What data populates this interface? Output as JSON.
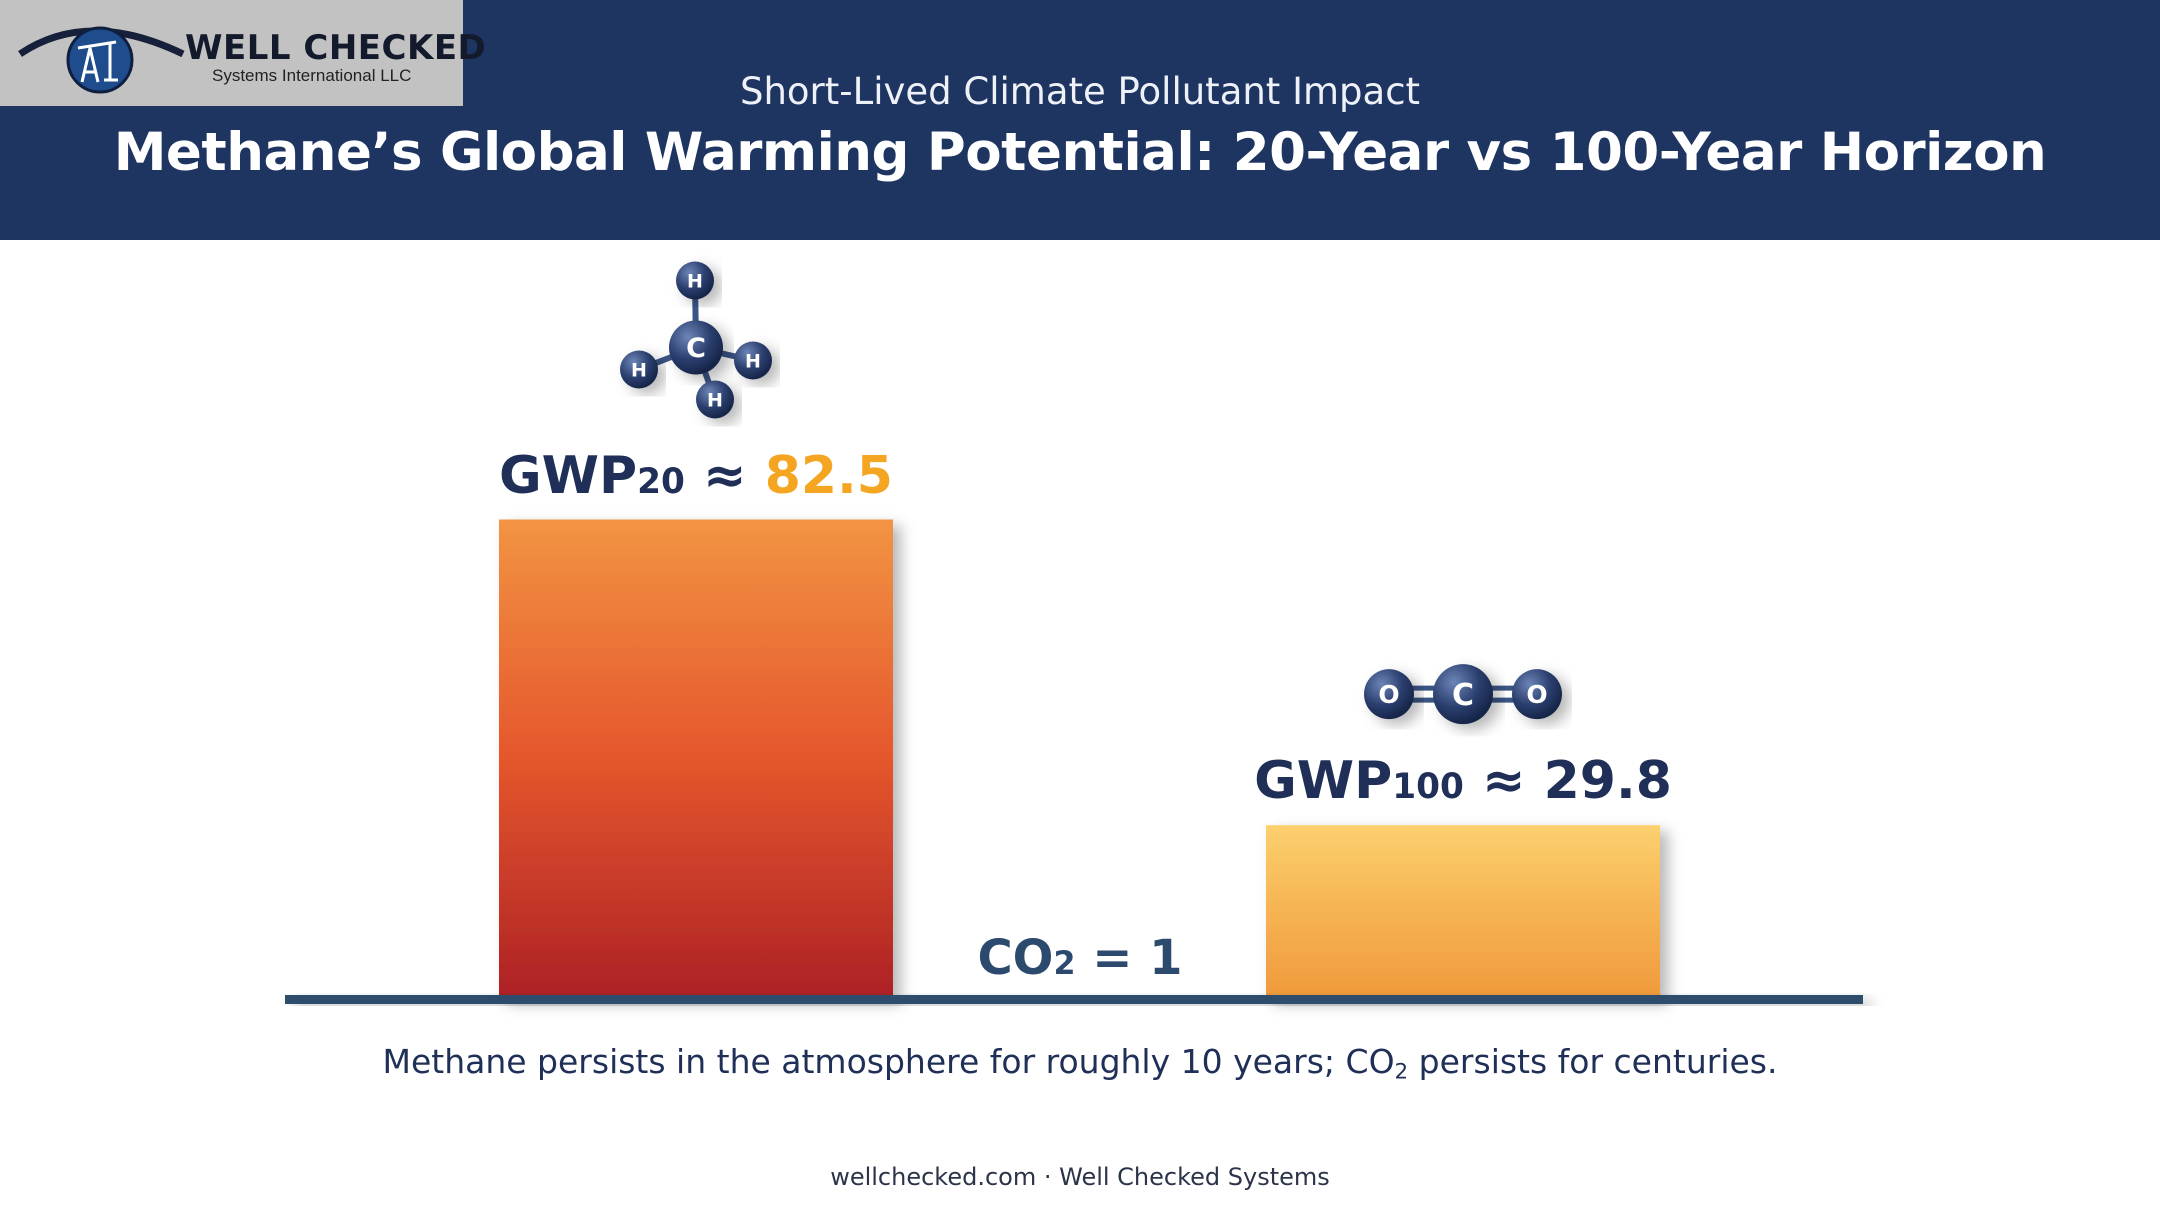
{
  "logo": {
    "name": "WELL CHECKED",
    "tagline": "Systems International LLC"
  },
  "header": {
    "subtitle": "Short-Lived Climate Pollutant Impact",
    "title": "Methane’s Global Warming Potential: 20-Year vs 100-Year Horizon"
  },
  "chart_data": {
    "type": "bar",
    "categories": [
      "GWP20",
      "CO2",
      "GWP100"
    ],
    "values": [
      82.5,
      1,
      29.8
    ],
    "bar_colors": [
      [
        "#f29443",
        "#e5562c",
        "#ad2126"
      ],
      [
        "#2c4a6e",
        "#2c4a6e",
        "#2c4a6e"
      ],
      [
        "#fcd06e",
        "#f6b352",
        "#f09a3c"
      ]
    ],
    "labels": [
      {
        "main": "GWP",
        "sub": "20",
        "approx": " ≈ ",
        "value": "82.5"
      },
      {
        "main": "CO",
        "sub": "2",
        "approx": " = ",
        "value": "1"
      },
      {
        "main": "GWP",
        "sub": "100",
        "approx": " ≈ ",
        "value": "29.8"
      }
    ],
    "molecules": [
      {
        "name": "methane",
        "center": "C",
        "atoms": [
          "H",
          "H",
          "H",
          "H"
        ]
      },
      {
        "name": "carbon-dioxide",
        "center": "C",
        "atoms": [
          "O",
          "O"
        ]
      }
    ]
  },
  "caption": {
    "part1": "Methane persists in the atmosphere for roughly 10 years; CO",
    "sub": "2",
    "part2": " persists for centuries."
  },
  "footer": "wellchecked.com · Well Checked Systems",
  "colors": {
    "header_bg": "#1e3461",
    "accent": "#f4a623",
    "navy_text": "#1f2f57",
    "baseline": "#2e4e6c"
  }
}
